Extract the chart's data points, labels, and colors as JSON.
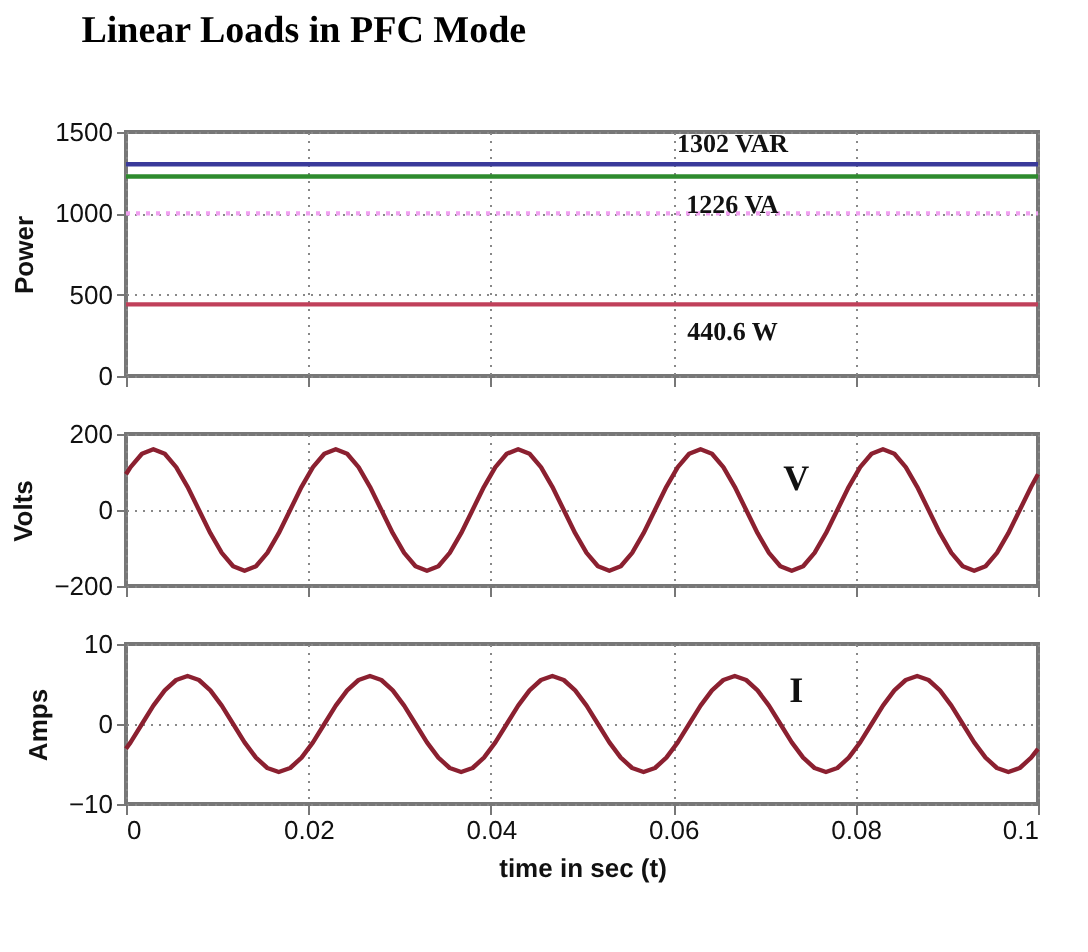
{
  "chart_data": [
    {
      "type": "line",
      "title": "Linear Loads in PFC Mode",
      "ylabel": "Power",
      "xlim": [
        0,
        0.1
      ],
      "xticks": [
        0,
        0.02,
        0.04,
        0.06,
        0.08,
        0.1
      ],
      "ylim": [
        0,
        1500
      ],
      "yticks": [
        0,
        500,
        1000,
        1500
      ],
      "grid": true,
      "tick_labels": "y",
      "x": [
        0,
        0.1
      ],
      "series": [
        {
          "name": "1302 VAR",
          "color": "#3a3a9a",
          "values": [
            1302,
            1302
          ]
        },
        {
          "name": "1226 VA",
          "color": "#2e8b2e",
          "values": [
            1226,
            1226
          ]
        },
        {
          "color": "#f0a0f0",
          "values": [
            1000,
            1000
          ],
          "line_style": "dotted"
        },
        {
          "name": "440.6 W",
          "color": "#c0405a",
          "values": [
            440.6,
            440.6
          ]
        }
      ]
    },
    {
      "type": "line",
      "ylabel": "Volts",
      "xlim": [
        0,
        0.1
      ],
      "xticks": [
        0,
        0.02,
        0.04,
        0.06,
        0.08,
        0.1
      ],
      "ylim": [
        -200,
        200
      ],
      "yticks": [
        -200,
        0,
        200
      ],
      "grid": true,
      "tick_labels": "y",
      "x": [
        0,
        0.0005,
        0.00175,
        0.003,
        0.00425,
        0.0055,
        0.00675,
        0.008,
        0.00925,
        0.0105,
        0.01175,
        0.013,
        0.01425,
        0.0155,
        0.01675,
        0.018,
        0.01925,
        0.0205,
        0.02175,
        0.023,
        0.02425,
        0.0255,
        0.02675,
        0.028,
        0.02925,
        0.0305,
        0.03175,
        0.033,
        0.03425,
        0.0355,
        0.03675,
        0.038,
        0.03925,
        0.0405,
        0.04175,
        0.043,
        0.04425,
        0.0455,
        0.04675,
        0.048,
        0.04925,
        0.0505,
        0.05175,
        0.053,
        0.05425,
        0.0555,
        0.05675,
        0.058,
        0.05925,
        0.0605,
        0.06175,
        0.063,
        0.06425,
        0.0655,
        0.06675,
        0.068,
        0.06925,
        0.0705,
        0.07175,
        0.073,
        0.07425,
        0.0755,
        0.07675,
        0.078,
        0.07925,
        0.0805,
        0.08175,
        0.083,
        0.08425,
        0.0855,
        0.08675,
        0.088,
        0.08925,
        0.0905,
        0.09175,
        0.093,
        0.09425,
        0.0955,
        0.09675,
        0.098,
        0.09925,
        0.1
      ],
      "series": [
        {
          "name": "V",
          "color": "#8b2030",
          "values": [
            94,
            113,
            148,
            160,
            148,
            113,
            61,
            0,
            -61,
            -113,
            -148,
            -160,
            -148,
            -113,
            -61,
            0,
            61,
            113,
            148,
            160,
            148,
            113,
            61,
            0,
            -61,
            -113,
            -148,
            -160,
            -148,
            -113,
            -61,
            0,
            61,
            113,
            148,
            160,
            148,
            113,
            61,
            0,
            -61,
            -113,
            -148,
            -160,
            -148,
            -113,
            -61,
            0,
            61,
            113,
            148,
            160,
            148,
            113,
            61,
            0,
            -61,
            -113,
            -148,
            -160,
            -148,
            -113,
            -61,
            0,
            61,
            113,
            148,
            160,
            148,
            113,
            61,
            0,
            -61,
            -113,
            -148,
            -160,
            -148,
            -113,
            -61,
            0,
            61,
            94
          ]
        }
      ]
    },
    {
      "type": "line",
      "ylabel": "Amps",
      "xlabel": "time in sec (t)",
      "xlim": [
        0,
        0.1
      ],
      "xticks": [
        0,
        0.02,
        0.04,
        0.06,
        0.08,
        0.1
      ],
      "ylim": [
        -10,
        10
      ],
      "yticks": [
        -10,
        0,
        10
      ],
      "grid": true,
      "x": [
        0,
        0.0005,
        0.00175,
        0.003,
        0.00425,
        0.0055,
        0.00675,
        0.008,
        0.00925,
        0.0105,
        0.01175,
        0.013,
        0.01425,
        0.0155,
        0.01675,
        0.018,
        0.01925,
        0.0205,
        0.02175,
        0.023,
        0.02425,
        0.0255,
        0.02675,
        0.028,
        0.02925,
        0.0305,
        0.03175,
        0.033,
        0.03425,
        0.0355,
        0.03675,
        0.038,
        0.03925,
        0.0405,
        0.04175,
        0.043,
        0.04425,
        0.0455,
        0.04675,
        0.048,
        0.04925,
        0.0505,
        0.05175,
        0.053,
        0.05425,
        0.0555,
        0.05675,
        0.058,
        0.05925,
        0.0605,
        0.06175,
        0.063,
        0.06425,
        0.0655,
        0.06675,
        0.068,
        0.06925,
        0.0705,
        0.07175,
        0.073,
        0.07425,
        0.0755,
        0.07675,
        0.078,
        0.07925,
        0.0805,
        0.08175,
        0.083,
        0.08425,
        0.0855,
        0.08675,
        0.088,
        0.08925,
        0.0905,
        0.09175,
        0.093,
        0.09425,
        0.0955,
        0.09675,
        0.098,
        0.09925,
        0.1
      ],
      "series": [
        {
          "name": "I",
          "color": "#8b2030",
          "values": [
            -3.1,
            -2.3,
            0,
            2.3,
            4.2,
            5.5,
            6,
            5.5,
            4.2,
            2.3,
            0,
            -2.3,
            -4.2,
            -5.5,
            -6,
            -5.5,
            -4.2,
            -2.3,
            0,
            2.3,
            4.2,
            5.5,
            6,
            5.5,
            4.2,
            2.3,
            0,
            -2.3,
            -4.2,
            -5.5,
            -6,
            -5.5,
            -4.2,
            -2.3,
            0,
            2.3,
            4.2,
            5.5,
            6,
            5.5,
            4.2,
            2.3,
            0,
            -2.3,
            -4.2,
            -5.5,
            -6,
            -5.5,
            -4.2,
            -2.3,
            0,
            2.3,
            4.2,
            5.5,
            6,
            5.5,
            4.2,
            2.3,
            0,
            -2.3,
            -4.2,
            -5.5,
            -6,
            -5.5,
            -4.2,
            -2.3,
            0,
            2.3,
            4.2,
            5.5,
            6,
            5.5,
            4.2,
            2.3,
            0,
            -2.3,
            -4.2,
            -5.5,
            -6,
            -5.5,
            -4.2,
            -3.1
          ]
        }
      ]
    }
  ]
}
